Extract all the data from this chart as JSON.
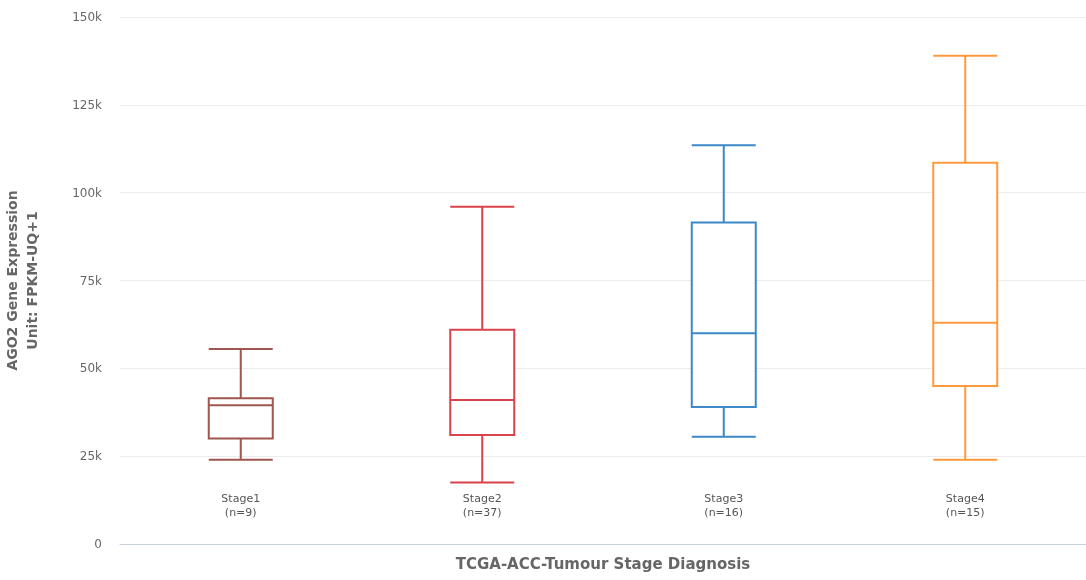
{
  "chart_data": {
    "type": "box",
    "xlabel": "TCGA-ACC-Tumour Stage Diagnosis",
    "ylabel": "AGO2 Gene Expression\nUnit: FPKM-UQ+1",
    "categories": [
      "Stage1\n(n=9)",
      "Stage2\n(n=37)",
      "Stage3\n(n=16)",
      "Stage4\n(n=15)"
    ],
    "boxes": [
      {
        "low": 24000,
        "q1": 30000,
        "median": 39500,
        "q3": 41500,
        "high": 55500
      },
      {
        "low": 17500,
        "q1": 31000,
        "median": 41000,
        "q3": 61000,
        "high": 96000
      },
      {
        "low": 30500,
        "q1": 39000,
        "median": 60000,
        "q3": 91500,
        "high": 113500
      },
      {
        "low": 24000,
        "q1": 45000,
        "median": 63000,
        "q3": 108500,
        "high": 139000
      }
    ],
    "colors": [
      "#a0554f",
      "#d9434b",
      "#3d88c8",
      "#ff9a3c"
    ],
    "ylim": [
      0,
      150000
    ],
    "yticks": [
      0,
      {
        "value": 25000,
        "label": "25k"
      },
      {
        "value": 50000,
        "label": "50k"
      },
      {
        "value": 75000,
        "label": "75k"
      },
      {
        "value": 100000,
        "label": "100k"
      },
      {
        "value": 125000,
        "label": "125k"
      },
      {
        "value": 150000,
        "label": "150k"
      }
    ],
    "grid": "y"
  }
}
